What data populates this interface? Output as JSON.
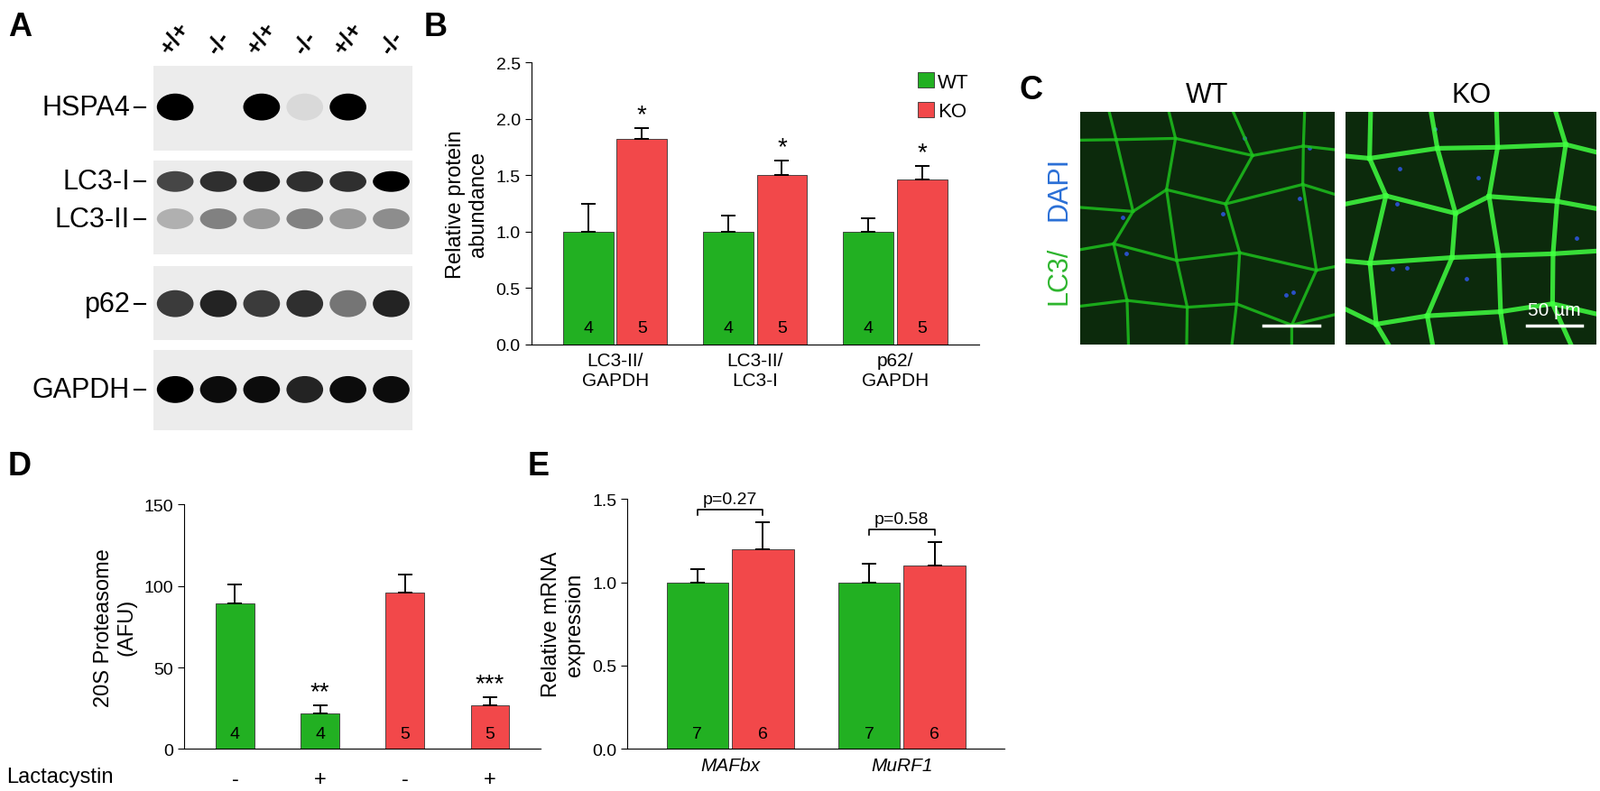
{
  "blot": {
    "panel": "A",
    "lanes": [
      "+/+",
      "-/-",
      "+/+",
      "-/-",
      "+/+",
      "-/-"
    ],
    "strips": [
      {
        "bands": [
          {
            "label": "HSPA4",
            "intensities": [
              1.0,
              0.0,
              1.0,
              0.08,
              1.0,
              0.0
            ]
          }
        ]
      },
      {
        "bands": [
          {
            "label": "LC3-I",
            "intensities": [
              0.7,
              0.8,
              0.85,
              0.8,
              0.8,
              1.0
            ]
          },
          {
            "label": "LC3-II",
            "intensities": [
              0.25,
              0.45,
              0.35,
              0.45,
              0.35,
              0.4
            ]
          }
        ]
      },
      {
        "bands": [
          {
            "label": "p62",
            "intensities": [
              0.75,
              0.85,
              0.75,
              0.8,
              0.5,
              0.85
            ]
          }
        ]
      },
      {
        "bands": [
          {
            "label": "GAPDH",
            "intensities": [
              1.0,
              0.95,
              0.95,
              0.85,
              0.95,
              0.95
            ]
          }
        ]
      }
    ]
  },
  "micrograph": {
    "panel": "C",
    "images": [
      "WT",
      "KO"
    ],
    "stain_labels": [
      {
        "text": "LC3/",
        "color": "#2db52d"
      },
      {
        "text": "DAPI",
        "color": "#2a6fd6"
      }
    ],
    "scale_bar_label": "50 µm"
  },
  "chart_data": [
    {
      "type": "bar",
      "panel": "B",
      "ylabel": "Relative protein\nabundance",
      "categories": [
        "LC3-II/\nGAPDH",
        "LC3-II/\nLC3-I",
        "p62/\nGAPDH"
      ],
      "series": [
        {
          "name": "WT",
          "color": "#22b022",
          "values": [
            1.0,
            1.0,
            1.0
          ],
          "errors": [
            0.25,
            0.14,
            0.12
          ],
          "n": [
            4,
            4,
            4
          ]
        },
        {
          "name": "KO",
          "color": "#f2484a",
          "values": [
            1.82,
            1.5,
            1.46
          ],
          "errors": [
            0.1,
            0.13,
            0.12
          ],
          "n": [
            5,
            5,
            5
          ],
          "annotations": [
            "*",
            "*",
            "*"
          ]
        }
      ],
      "ylim": [
        0,
        2.5
      ],
      "yticks": [
        {
          "value": 0,
          "label": "0.0"
        },
        0.5,
        {
          "value": 1,
          "label": "1.0"
        },
        1.5,
        {
          "value": 2,
          "label": "2.0"
        },
        2.5
      ],
      "legend": "upper right"
    },
    {
      "type": "bar",
      "panel": "D",
      "ylabel": "20S Proteasome\n(AFU)",
      "categories": [
        "-",
        "+",
        "-",
        "+"
      ],
      "x_label": "Lactacystin",
      "values": [
        89,
        22,
        96,
        27
      ],
      "errors": [
        12,
        5,
        11,
        5
      ],
      "n": [
        4,
        4,
        5,
        5
      ],
      "colors": [
        "#22b022",
        "#22b022",
        "#f2484a",
        "#f2484a"
      ],
      "annotations": [
        null,
        "**",
        null,
        "***"
      ],
      "ylim": [
        0,
        150
      ],
      "yticks": [
        0,
        50,
        100,
        150
      ]
    },
    {
      "type": "bar",
      "panel": "E",
      "ylabel": "Relative mRNA\nexpression",
      "categories": [
        "MAFbx",
        "MuRF1"
      ],
      "series": [
        {
          "name": "WT",
          "color": "#22b022",
          "values": [
            1.0,
            1.0
          ],
          "errors": [
            0.08,
            0.11
          ],
          "n": [
            7,
            7
          ]
        },
        {
          "name": "KO",
          "color": "#f2484a",
          "values": [
            1.2,
            1.1
          ],
          "errors": [
            0.16,
            0.14
          ],
          "n": [
            6,
            6
          ]
        }
      ],
      "comparisons": [
        "p=0.27",
        "p=0.58"
      ],
      "ylim": [
        0,
        1.5
      ],
      "yticks": [
        {
          "value": 0,
          "label": "0.0"
        },
        0.5,
        {
          "value": 1,
          "label": "1.0"
        },
        1.5
      ]
    }
  ]
}
